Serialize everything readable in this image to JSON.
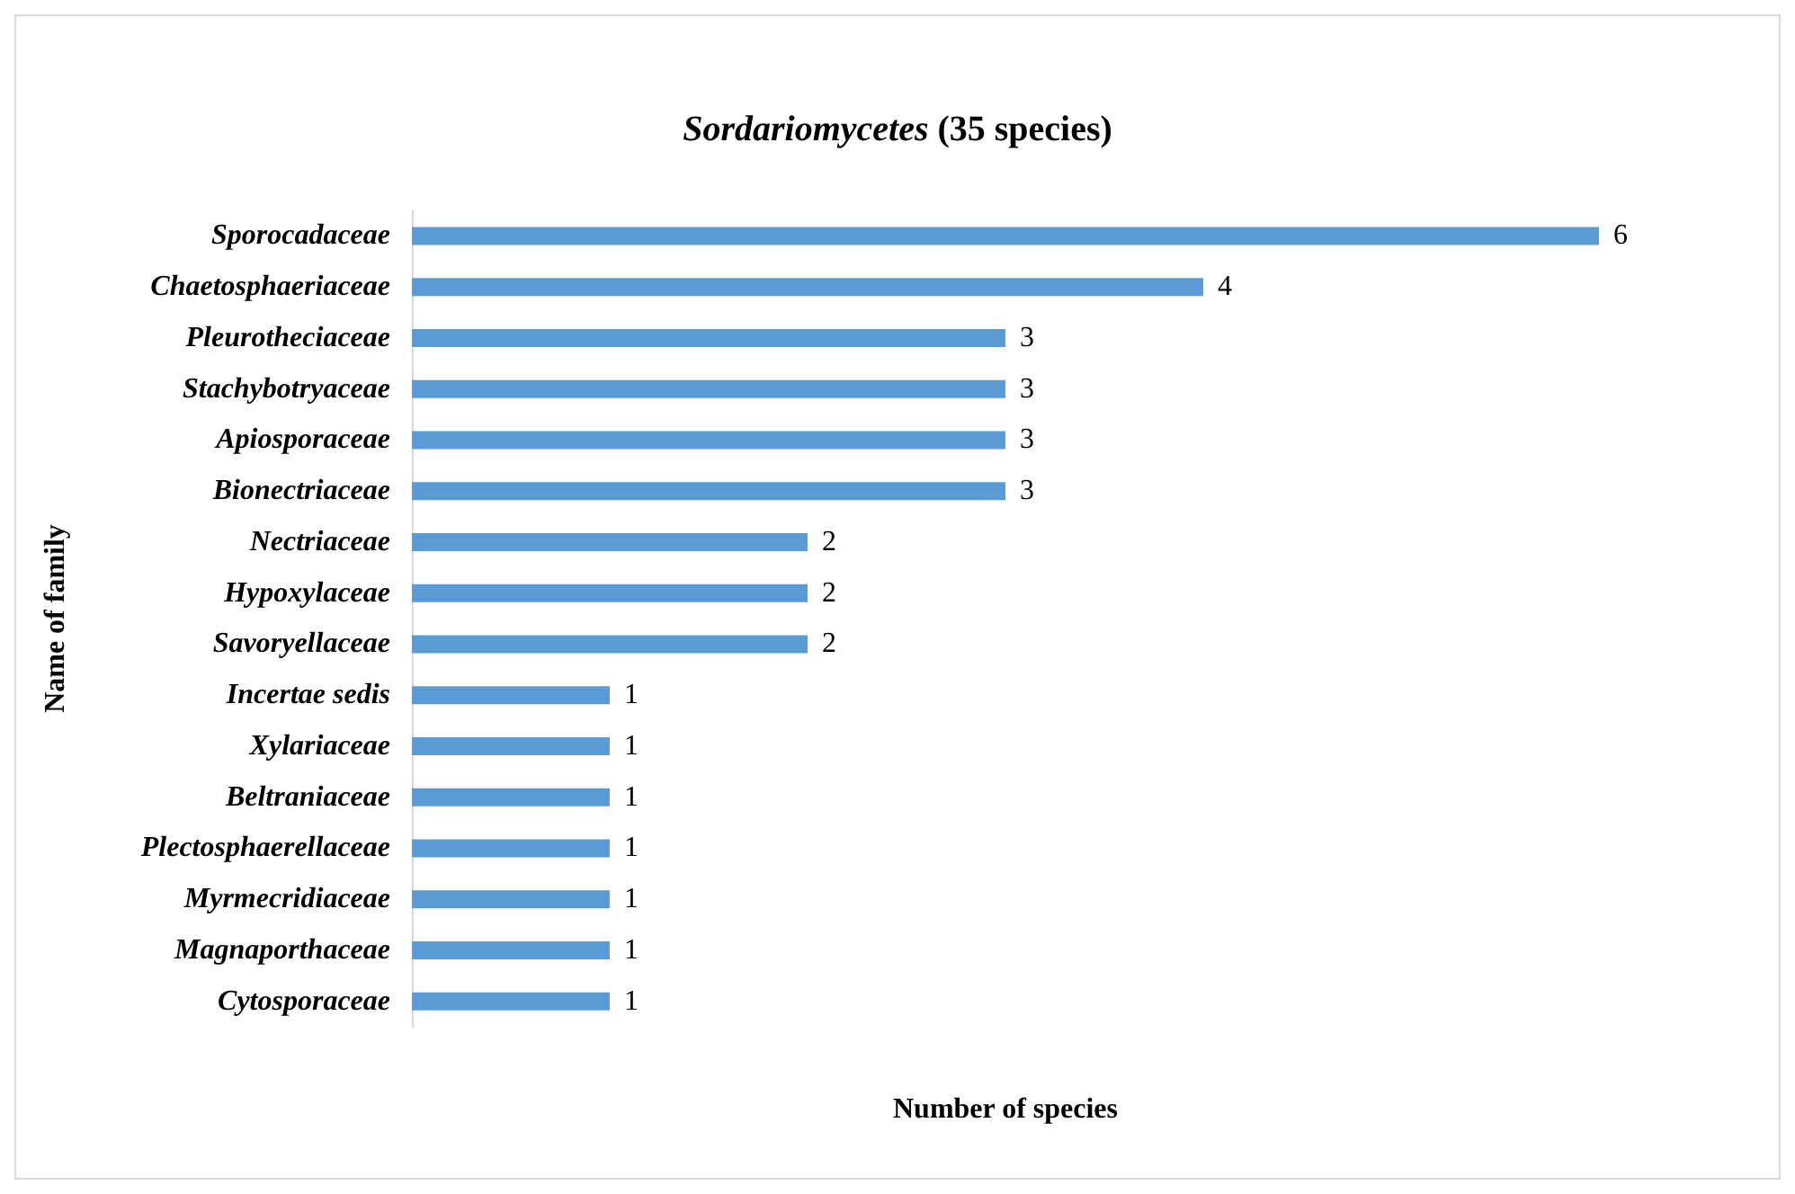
{
  "chart_data": {
    "type": "bar",
    "orientation": "horizontal",
    "title": "Sordariomycetes (35 species)",
    "xlabel": "Number of species",
    "ylabel": "Name of family",
    "categories": [
      "Sporocadaceae",
      "Chaetosphaeriaceae",
      "Pleurotheciaceae",
      "Stachybotryaceae",
      "Apiosporaceae",
      "Bionectriaceae",
      "Nectriaceae",
      "Hypoxylaceae",
      "Savoryellaceae",
      "Incertae sedis",
      "Xylariaceae",
      "Beltraniaceae",
      "Plectosphaerellaceae",
      "Myrmecridiaceae",
      "Magnaporthaceae",
      "Cytosporaceae"
    ],
    "values": [
      6,
      4,
      3,
      3,
      3,
      3,
      2,
      2,
      2,
      1,
      1,
      1,
      1,
      1,
      1,
      1
    ],
    "color": "#5b9bd5",
    "data_labels": true,
    "grid": false
  }
}
